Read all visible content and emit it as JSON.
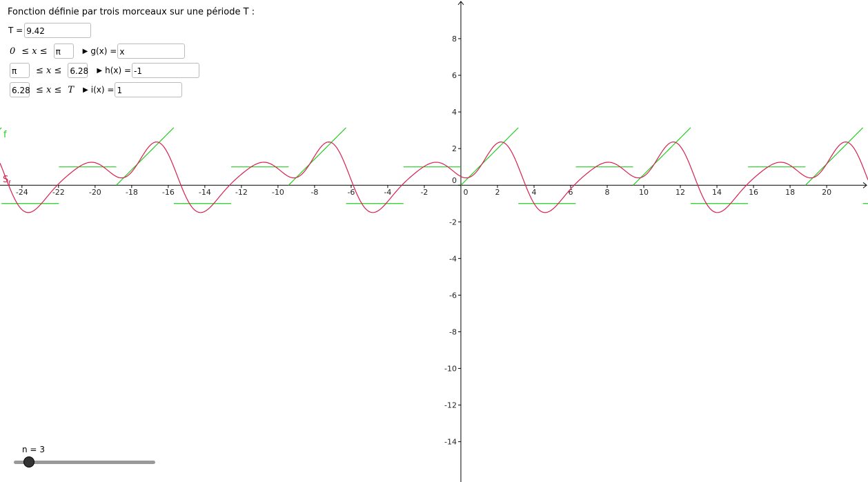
{
  "panel": {
    "title": "Fonction définie par trois morceaux sur une période T :",
    "period": {
      "label": "T =",
      "value": "9.42"
    },
    "rows": [
      {
        "lower": {
          "text": "0",
          "boxed": false
        },
        "relation": "≤ x ≤",
        "upper": {
          "text": "π",
          "boxed": true
        },
        "name": "g(x) =",
        "expr": "x"
      },
      {
        "lower": {
          "text": "π",
          "boxed": true
        },
        "relation": "≤ x ≤",
        "upper": {
          "text": "6.28",
          "boxed": true
        },
        "name": "h(x) =",
        "expr": "-1"
      },
      {
        "lower": {
          "text": "6.28",
          "boxed": true
        },
        "relation": "≤ x ≤",
        "upper": {
          "text": "T",
          "boxed": false
        },
        "name": "i(x) =",
        "expr": "1"
      }
    ]
  },
  "graph": {
    "xlim": [
      -25.2,
      22.26
    ],
    "ylim": [
      -16.2,
      10.11
    ],
    "xticks": [
      -24,
      -22,
      -20,
      -18,
      -16,
      -14,
      -12,
      -10,
      -8,
      -6,
      -4,
      -2,
      0,
      2,
      4,
      6,
      8,
      10,
      12,
      14,
      16,
      18,
      20
    ],
    "yticks": [
      -14,
      -12,
      -10,
      -8,
      -6,
      -4,
      -2,
      0,
      2,
      4,
      6,
      8
    ],
    "curves": [
      {
        "label": "f",
        "color": "#22cc22"
      },
      {
        "label": "S",
        "subscript": "f",
        "color": "#d6204e"
      }
    ]
  },
  "slider": {
    "label": "n =",
    "value": 3
  }
}
